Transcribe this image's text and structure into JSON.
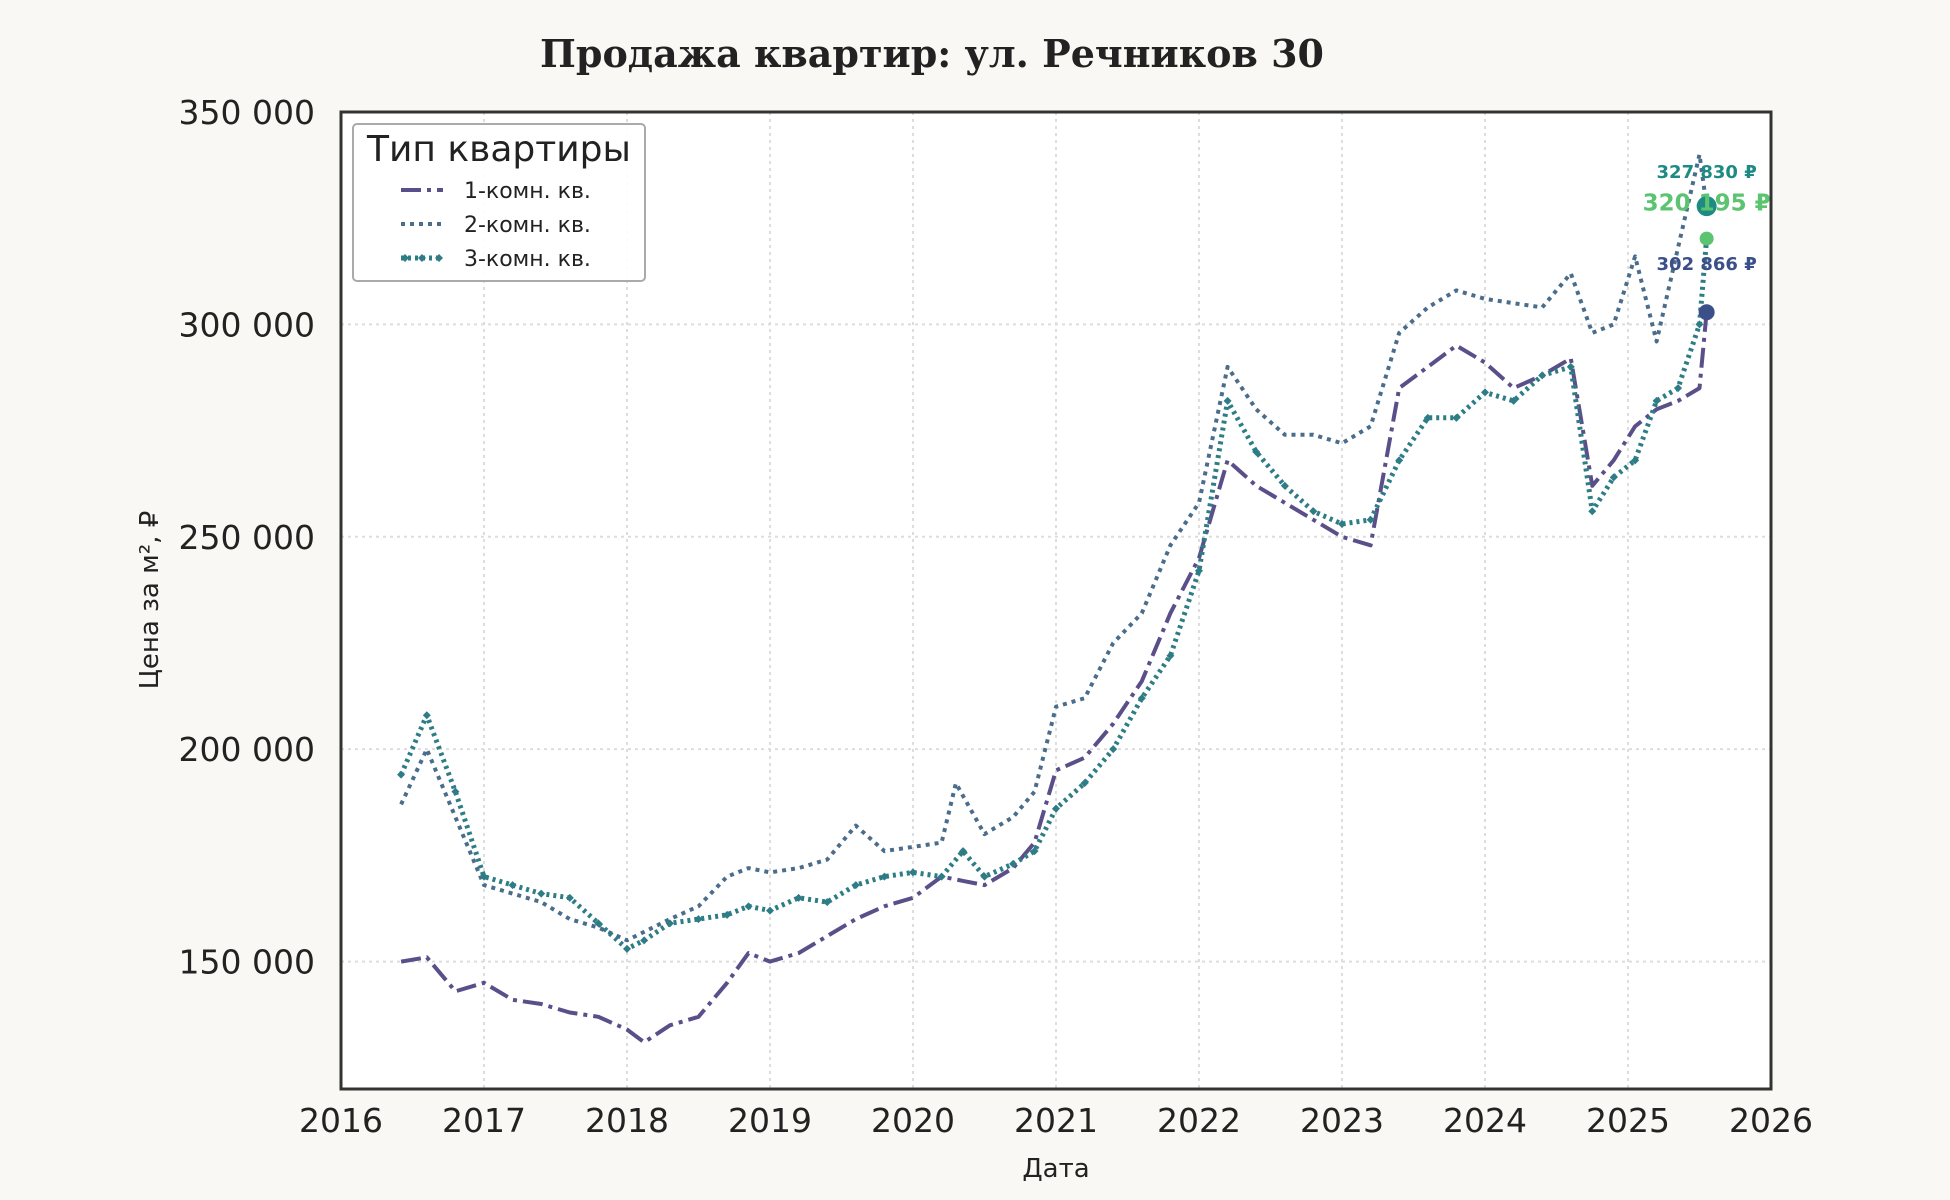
{
  "chart_data": {
    "type": "line",
    "title": "Продажа квартир: ул. Речников 30",
    "xlabel": "Дата",
    "ylabel": "Цена за м², ₽",
    "xlim": [
      2016,
      2026
    ],
    "ylim": [
      120000,
      350000
    ],
    "x_ticks": [
      "2016",
      "2017",
      "2018",
      "2019",
      "2020",
      "2021",
      "2022",
      "2023",
      "2024",
      "2025",
      "2026"
    ],
    "y_ticks": [
      {
        "value": 150000,
        "label": "150 000"
      },
      {
        "value": 200000,
        "label": "200 000"
      },
      {
        "value": 250000,
        "label": "250 000"
      },
      {
        "value": 300000,
        "label": "300 000"
      },
      {
        "value": 350000,
        "label": "350 000"
      }
    ],
    "grid": true,
    "legend": {
      "title": "Тип квартиры",
      "position": "top-left"
    },
    "series": [
      {
        "name": "1-комн. кв.",
        "color": "#5b4f8a",
        "dash": "20 6 4 6",
        "width": 4,
        "x": [
          2016.42,
          2016.6,
          2016.8,
          2017.0,
          2017.2,
          2017.4,
          2017.6,
          2017.8,
          2018.0,
          2018.12,
          2018.3,
          2018.5,
          2018.7,
          2018.85,
          2019.0,
          2019.2,
          2019.4,
          2019.6,
          2019.8,
          2020.0,
          2020.2,
          2020.35,
          2020.5,
          2020.7,
          2020.85,
          2021.0,
          2021.2,
          2021.4,
          2021.6,
          2021.8,
          2022.0,
          2022.2,
          2022.4,
          2022.6,
          2022.8,
          2023.0,
          2023.2,
          2023.4,
          2023.6,
          2023.8,
          2024.0,
          2024.2,
          2024.4,
          2024.6,
          2024.75,
          2024.9,
          2025.05,
          2025.2,
          2025.35,
          2025.5,
          2025.55
        ],
        "y": [
          150000,
          151000,
          143000,
          145000,
          141000,
          140000,
          138000,
          137000,
          134000,
          131000,
          135000,
          137000,
          145000,
          152000,
          150000,
          152000,
          156000,
          160000,
          163000,
          165000,
          170000,
          169000,
          168000,
          172000,
          178000,
          195000,
          198000,
          206000,
          216000,
          232000,
          245000,
          268000,
          262000,
          258000,
          254000,
          250000,
          248000,
          285000,
          290000,
          295000,
          291000,
          285000,
          288000,
          292000,
          262000,
          268000,
          276000,
          280000,
          282000,
          285000,
          302866
        ]
      },
      {
        "name": "2-комн. кв.",
        "color": "#4a6d8c",
        "dash": "4 5",
        "width": 4,
        "x": [
          2016.42,
          2016.6,
          2016.8,
          2017.0,
          2017.2,
          2017.4,
          2017.6,
          2017.8,
          2018.0,
          2018.12,
          2018.3,
          2018.5,
          2018.7,
          2018.85,
          2019.0,
          2019.2,
          2019.4,
          2019.6,
          2019.8,
          2020.0,
          2020.2,
          2020.3,
          2020.5,
          2020.7,
          2020.85,
          2021.0,
          2021.2,
          2021.4,
          2021.6,
          2021.8,
          2022.0,
          2022.2,
          2022.4,
          2022.6,
          2022.8,
          2023.0,
          2023.2,
          2023.4,
          2023.6,
          2023.8,
          2024.0,
          2024.2,
          2024.4,
          2024.6,
          2024.75,
          2024.9,
          2025.05,
          2025.2,
          2025.35,
          2025.5,
          2025.55
        ],
        "y": [
          187000,
          200000,
          184000,
          168000,
          166000,
          164000,
          160000,
          158000,
          155000,
          157000,
          160000,
          163000,
          170000,
          172000,
          171000,
          172000,
          174000,
          182000,
          176000,
          177000,
          178000,
          192000,
          180000,
          184000,
          190000,
          210000,
          212000,
          225000,
          232000,
          248000,
          258000,
          290000,
          280000,
          274000,
          274000,
          272000,
          276000,
          298000,
          304000,
          308000,
          306000,
          305000,
          304000,
          312000,
          298000,
          300000,
          316000,
          296000,
          318000,
          340000,
          327830
        ]
      },
      {
        "name": "3-комн. кв.",
        "color": "#2e7d86",
        "dash": "3 4",
        "width": 5,
        "marker": "diamond",
        "x": [
          2016.42,
          2016.6,
          2016.8,
          2017.0,
          2017.2,
          2017.4,
          2017.6,
          2017.8,
          2018.0,
          2018.12,
          2018.3,
          2018.5,
          2018.7,
          2018.85,
          2019.0,
          2019.2,
          2019.4,
          2019.6,
          2019.8,
          2020.0,
          2020.2,
          2020.35,
          2020.5,
          2020.7,
          2020.85,
          2021.0,
          2021.2,
          2021.4,
          2021.6,
          2021.8,
          2022.0,
          2022.2,
          2022.4,
          2022.6,
          2022.8,
          2023.0,
          2023.2,
          2023.4,
          2023.6,
          2023.8,
          2024.0,
          2024.2,
          2024.4,
          2024.6,
          2024.75,
          2024.9,
          2025.05,
          2025.2,
          2025.35,
          2025.5,
          2025.55
        ],
        "y": [
          194000,
          208000,
          190000,
          170000,
          168000,
          166000,
          165000,
          159000,
          153000,
          155000,
          159000,
          160000,
          161000,
          163000,
          162000,
          165000,
          164000,
          168000,
          170000,
          171000,
          170000,
          176000,
          170000,
          173000,
          176000,
          186000,
          192000,
          200000,
          212000,
          222000,
          242000,
          282000,
          270000,
          262000,
          256000,
          253000,
          254000,
          268000,
          278000,
          278000,
          284000,
          282000,
          288000,
          290000,
          256000,
          264000,
          268000,
          282000,
          285000,
          300000,
          320195
        ]
      }
    ],
    "end_points": [
      {
        "name": "2-комн. кв.",
        "x": 2025.55,
        "y": 327830,
        "label": "327 830 ₽",
        "color": "#1d8a84",
        "size": 10,
        "font": 18,
        "label_dy": -28
      },
      {
        "name": "3-комн. кв.",
        "x": 2025.55,
        "y": 320195,
        "label": "320 195 ₽",
        "color": "#5cc470",
        "size": 7,
        "font": 23,
        "label_dy": -28
      },
      {
        "name": "1-комн. кв.",
        "x": 2025.55,
        "y": 302866,
        "label": "302 866 ₽",
        "color": "#3b4f88",
        "size": 8,
        "font": 18,
        "label_dy": -42
      }
    ]
  }
}
